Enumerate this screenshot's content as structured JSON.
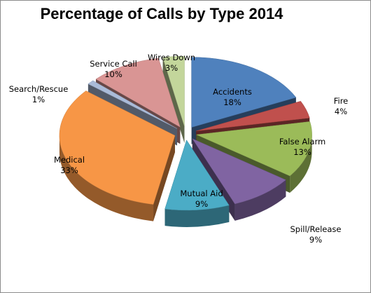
{
  "chart_data": {
    "type": "pie",
    "title": "Percentage of Calls by Type 2014",
    "three_d": true,
    "exploded": true,
    "start_angle_deg": 0,
    "slices": [
      {
        "name": "Accidents",
        "value": 18,
        "label": "18%",
        "color": "#4f81bd"
      },
      {
        "name": "Fire",
        "value": 4,
        "label": "4%",
        "color": "#c0504d"
      },
      {
        "name": "False Alarm",
        "value": 13,
        "label": "13%",
        "color": "#9bbb59"
      },
      {
        "name": "Spill/Release",
        "value": 9,
        "label": "9%",
        "color": "#8064a2"
      },
      {
        "name": "Mutual Aid",
        "value": 9,
        "label": "9%",
        "color": "#4bacc6"
      },
      {
        "name": "Medical",
        "value": 33,
        "label": "33%",
        "color": "#f79646"
      },
      {
        "name": "Search/Rescue",
        "value": 1,
        "label": "1%",
        "color": "#aabbd8"
      },
      {
        "name": "Service Call",
        "value": 10,
        "label": "10%",
        "color": "#d99594"
      },
      {
        "name": "Wires Down",
        "value": 3,
        "label": "3%",
        "color": "#c3d69b"
      }
    ]
  }
}
